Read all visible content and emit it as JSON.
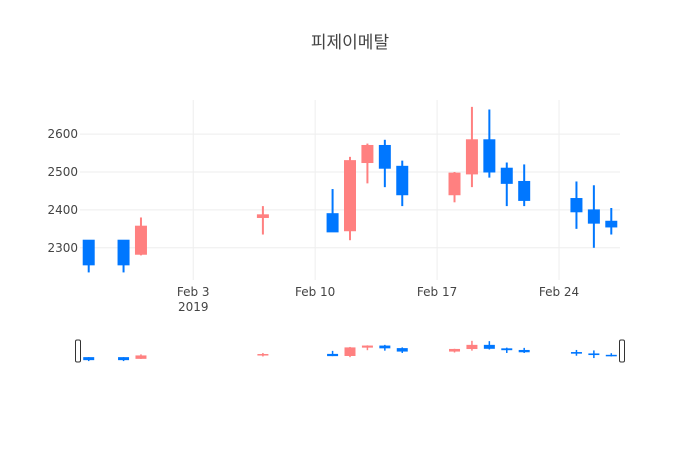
{
  "chart_data": {
    "type": "candlestick",
    "title": "피제이메탈",
    "xlabel": "",
    "ylabel": "",
    "x_ticks": [
      {
        "date": "2019-02-03",
        "label": "Feb 3",
        "sublabel": "2019"
      },
      {
        "date": "2019-02-10",
        "label": "Feb 10",
        "sublabel": ""
      },
      {
        "date": "2019-02-17",
        "label": "Feb 17",
        "sublabel": ""
      },
      {
        "date": "2019-02-24",
        "label": "Feb 24",
        "sublabel": ""
      }
    ],
    "y_ticks": [
      2300,
      2400,
      2500,
      2600
    ],
    "xlim": [
      "2019-01-28",
      "2019-02-27"
    ],
    "ylim": [
      2215,
      2690
    ],
    "grid": true,
    "legend": "none",
    "rangeslider": true,
    "colors": {
      "increasing": "#ff8080",
      "decreasing": "#0077ff",
      "grid": "#eeeeee",
      "text": "#444444"
    },
    "candles": [
      {
        "date": "2019-01-28",
        "open": 2320,
        "high": 2320,
        "low": 2235,
        "close": 2255
      },
      {
        "date": "2019-01-30",
        "open": 2320,
        "high": 2320,
        "low": 2235,
        "close": 2255
      },
      {
        "date": "2019-01-31",
        "open": 2283,
        "high": 2380,
        "low": 2280,
        "close": 2357
      },
      {
        "date": "2019-02-07",
        "open": 2380,
        "high": 2410,
        "low": 2335,
        "close": 2387
      },
      {
        "date": "2019-02-11",
        "open": 2390,
        "high": 2455,
        "low": 2342,
        "close": 2342
      },
      {
        "date": "2019-02-12",
        "open": 2345,
        "high": 2540,
        "low": 2320,
        "close": 2530
      },
      {
        "date": "2019-02-13",
        "open": 2525,
        "high": 2575,
        "low": 2470,
        "close": 2570
      },
      {
        "date": "2019-02-14",
        "open": 2570,
        "high": 2585,
        "low": 2460,
        "close": 2510
      },
      {
        "date": "2019-02-15",
        "open": 2515,
        "high": 2530,
        "low": 2410,
        "close": 2440
      },
      {
        "date": "2019-02-18",
        "open": 2440,
        "high": 2500,
        "low": 2420,
        "close": 2497
      },
      {
        "date": "2019-02-19",
        "open": 2495,
        "high": 2672,
        "low": 2460,
        "close": 2585
      },
      {
        "date": "2019-02-20",
        "open": 2585,
        "high": 2665,
        "low": 2485,
        "close": 2500
      },
      {
        "date": "2019-02-21",
        "open": 2510,
        "high": 2525,
        "low": 2410,
        "close": 2470
      },
      {
        "date": "2019-02-22",
        "open": 2475,
        "high": 2520,
        "low": 2410,
        "close": 2425
      },
      {
        "date": "2019-02-25",
        "open": 2430,
        "high": 2475,
        "low": 2350,
        "close": 2395
      },
      {
        "date": "2019-02-26",
        "open": 2400,
        "high": 2465,
        "low": 2300,
        "close": 2365
      },
      {
        "date": "2019-02-27",
        "open": 2370,
        "high": 2405,
        "low": 2335,
        "close": 2355
      }
    ]
  }
}
